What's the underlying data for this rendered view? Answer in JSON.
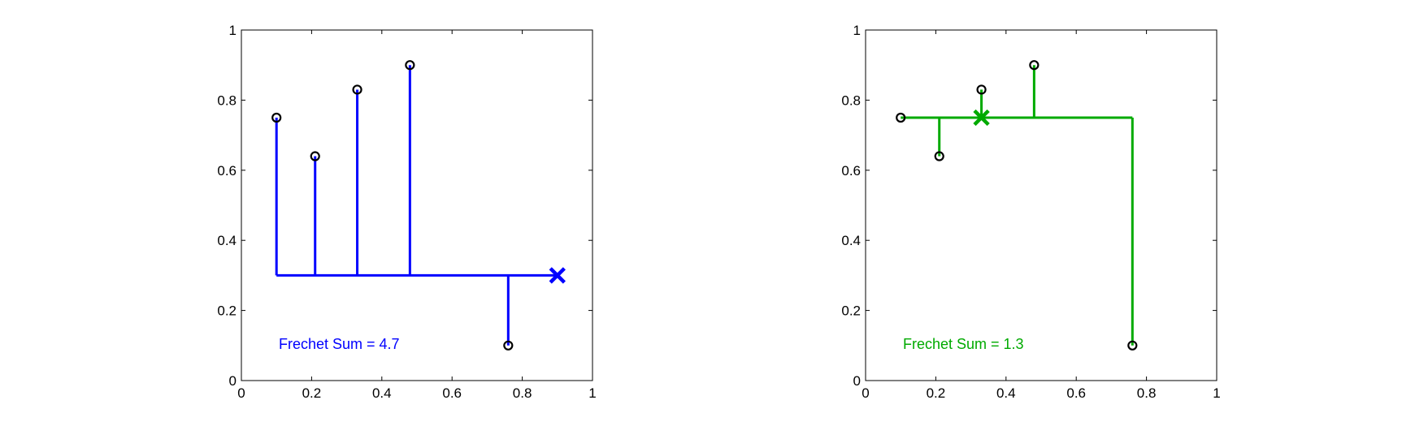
{
  "chart_data": [
    {
      "type": "scatter",
      "title": "",
      "xlabel": "",
      "ylabel": "",
      "xlim": [
        0,
        1
      ],
      "ylim": [
        0,
        1
      ],
      "xticks": [
        "0",
        "0.2",
        "0.4",
        "0.6",
        "0.8",
        "1"
      ],
      "yticks": [
        "0",
        "0.2",
        "0.4",
        "0.6",
        "0.8",
        "1"
      ],
      "grid": false,
      "color": "#0000ff",
      "points": [
        {
          "x": 0.1,
          "y": 0.75
        },
        {
          "x": 0.21,
          "y": 0.64
        },
        {
          "x": 0.33,
          "y": 0.83
        },
        {
          "x": 0.48,
          "y": 0.9
        },
        {
          "x": 0.76,
          "y": 0.1
        }
      ],
      "trunk": {
        "x_start": 0.1,
        "x_end": 0.9,
        "y": 0.3
      },
      "median_marker": {
        "x": 0.9,
        "y": 0.3
      },
      "annotation": "Frechet Sum = 4.7"
    },
    {
      "type": "scatter",
      "title": "",
      "xlabel": "",
      "ylabel": "",
      "xlim": [
        0,
        1
      ],
      "ylim": [
        0,
        1
      ],
      "xticks": [
        "0",
        "0.2",
        "0.4",
        "0.6",
        "0.8",
        "1"
      ],
      "yticks": [
        "0",
        "0.2",
        "0.4",
        "0.6",
        "0.8",
        "1"
      ],
      "grid": false,
      "color": "#00aa00",
      "points": [
        {
          "x": 0.1,
          "y": 0.75
        },
        {
          "x": 0.21,
          "y": 0.64
        },
        {
          "x": 0.33,
          "y": 0.83
        },
        {
          "x": 0.48,
          "y": 0.9
        },
        {
          "x": 0.76,
          "y": 0.1
        }
      ],
      "trunk": {
        "x_start": 0.1,
        "x_end": 0.76,
        "y": 0.75
      },
      "median_marker": {
        "x": 0.33,
        "y": 0.75
      },
      "annotation": "Frechet Sum = 1.3"
    }
  ]
}
